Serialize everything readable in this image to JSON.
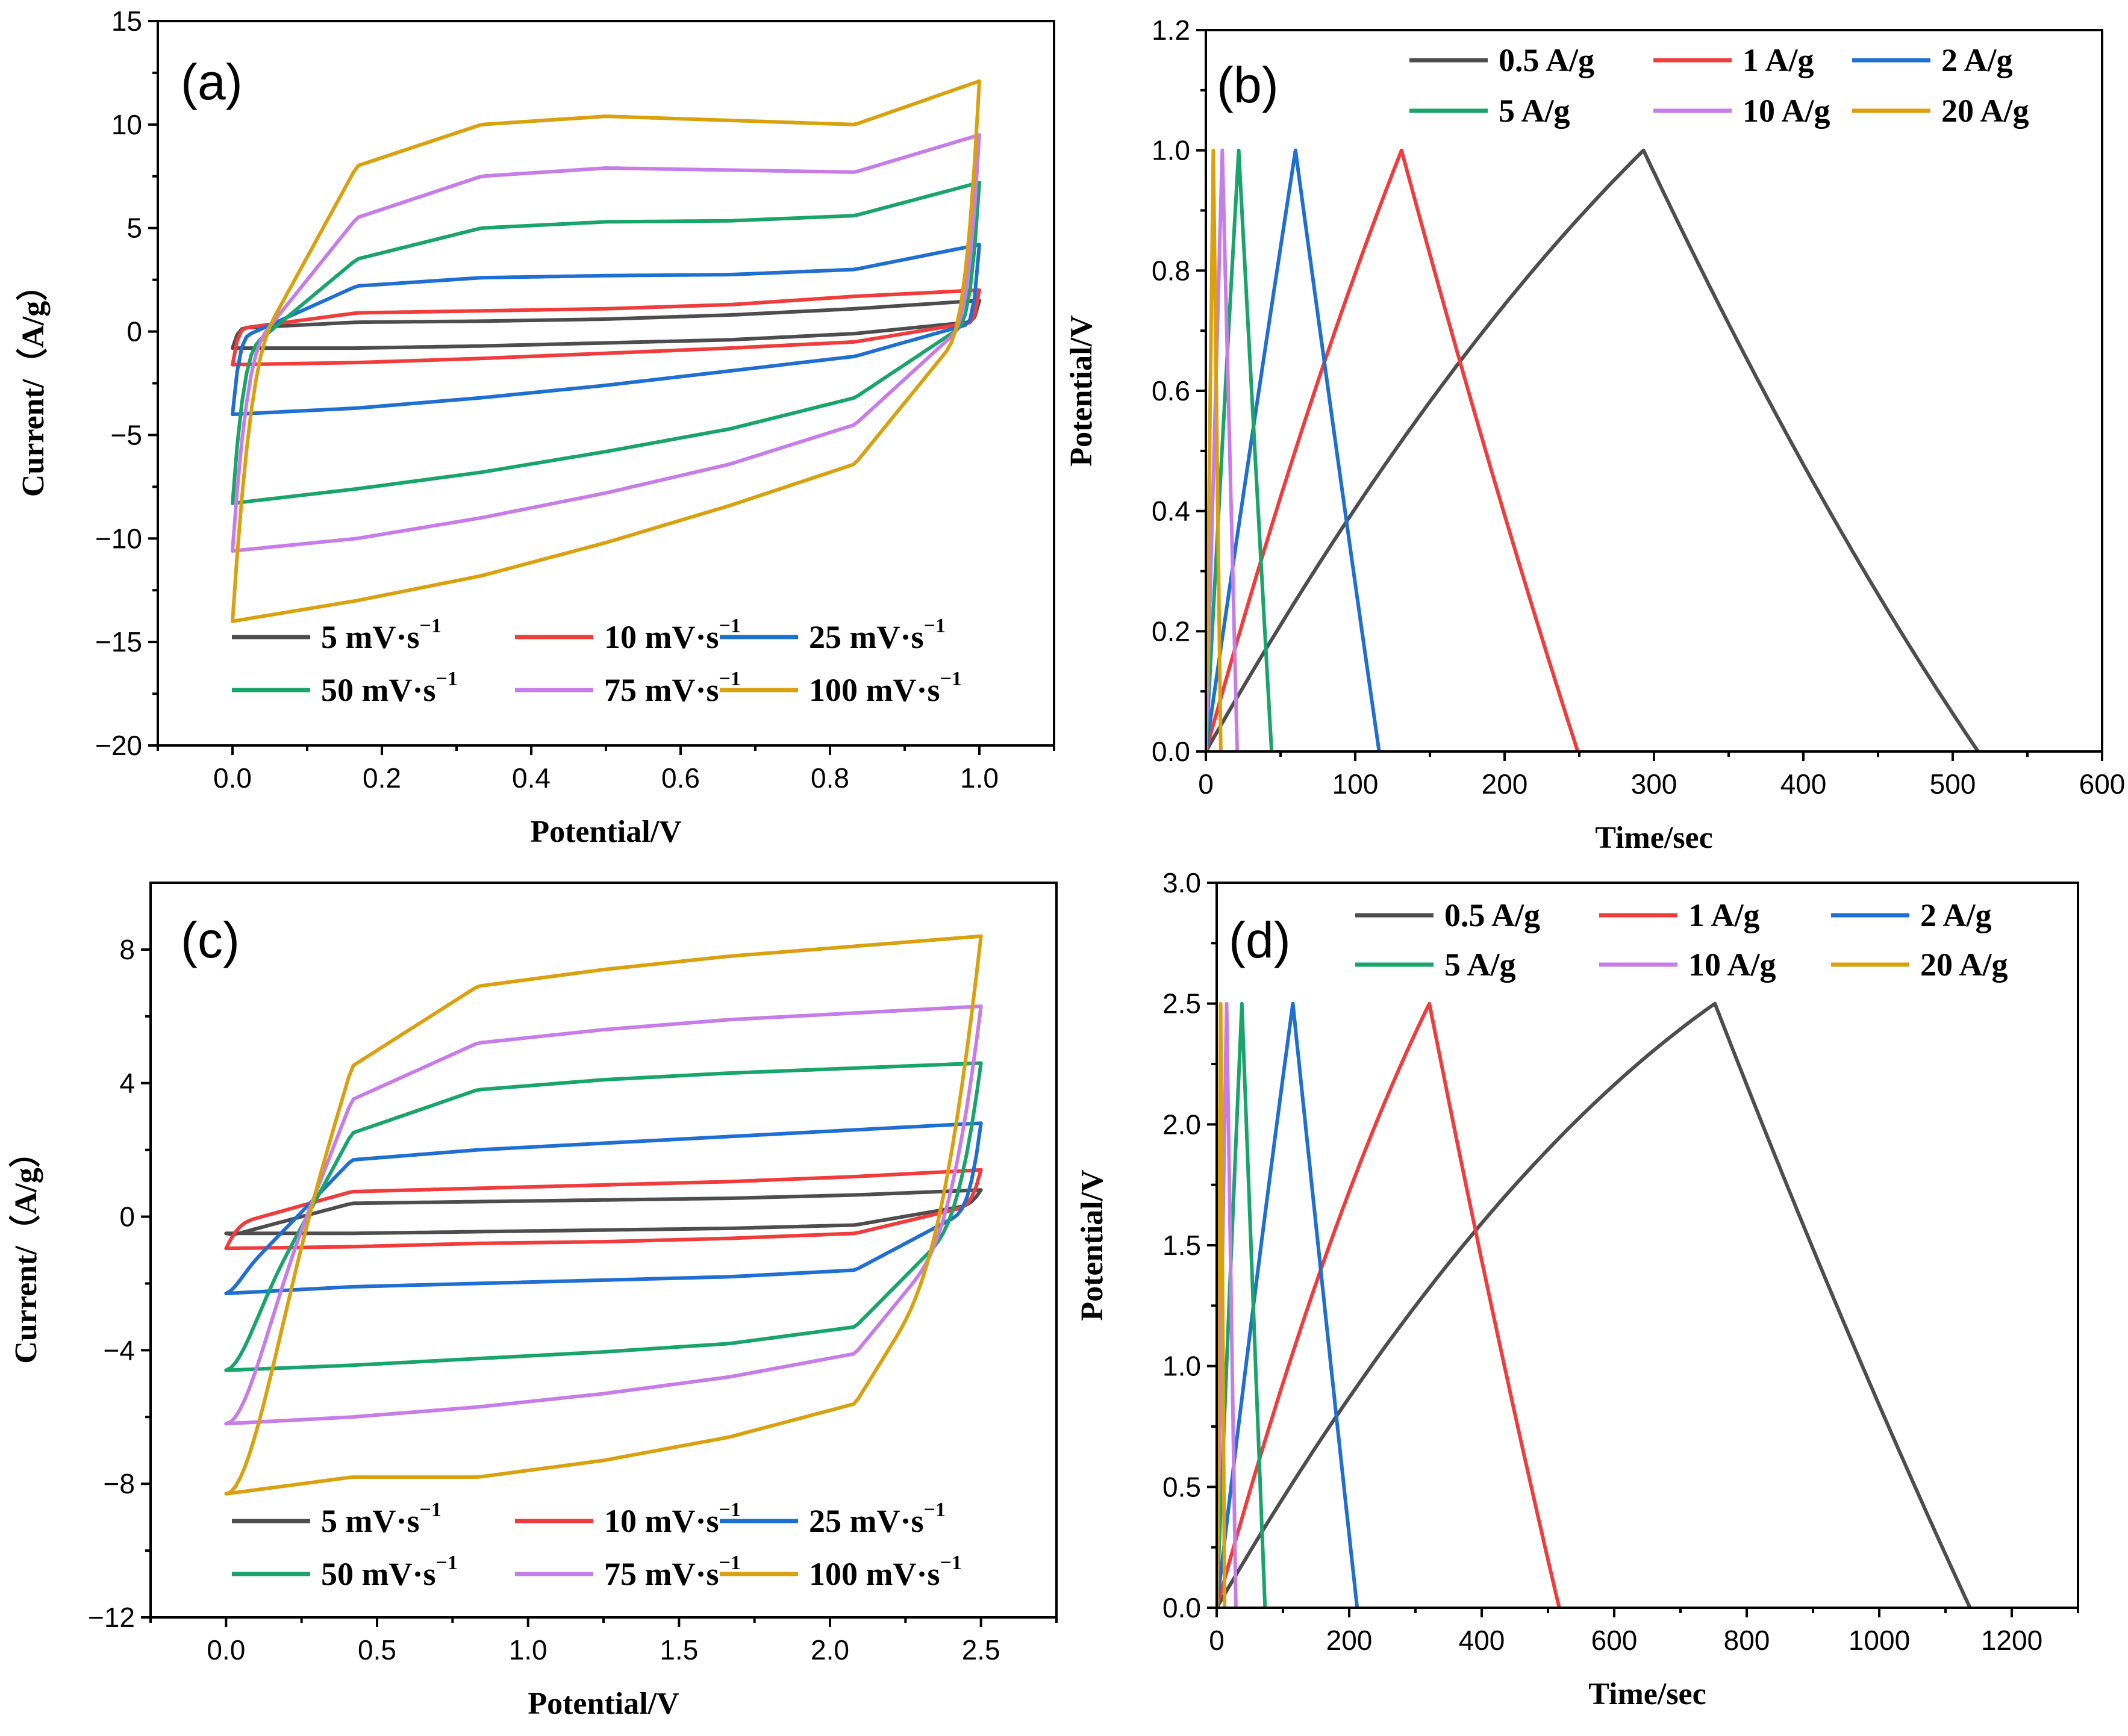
{
  "colors": {
    "series_1": "#4d4d4d",
    "series_2": "#f03c3c",
    "series_3": "#1f6fd1",
    "series_4": "#18a46a",
    "series_5": "#c77de8",
    "series_6": "#d9a10e"
  },
  "chart_data": [
    {
      "type": "line",
      "id": "a",
      "panel_label": "(a)",
      "xlabel": "Potential/V",
      "ylabel": "Current/（A/g）",
      "xlim": [
        -0.1,
        1.1
      ],
      "ylim": [
        -20,
        15
      ],
      "xticks": [
        0.0,
        0.2,
        0.4,
        0.6,
        0.8,
        1.0
      ],
      "xtick_labels": [
        "0.0",
        "0.2",
        "0.4",
        "0.6",
        "0.8",
        "1.0"
      ],
      "yticks": [
        -20,
        -15,
        -10,
        -5,
        0,
        5,
        10,
        15
      ],
      "ytick_labels": [
        "−20",
        "−15",
        "−10",
        "−5",
        "0",
        "5",
        "10",
        "15"
      ],
      "legend_position": "bottom",
      "series": [
        {
          "name": "5 mV·s",
          "sup": "−1",
          "color": "#4d4d4d",
          "cv": {
            "vmin": 0.0,
            "vmax": 1.0,
            "ia": [
              0.15,
              0.45,
              0.5,
              0.6,
              0.8,
              1.1,
              1.5
            ],
            "ic": [
              -0.8,
              -0.8,
              -0.7,
              -0.55,
              -0.4,
              -0.1,
              0.5
            ],
            "k": 0.02
          }
        },
        {
          "name": "10 mV·s",
          "sup": "−1",
          "color": "#f03c3c",
          "cv": {
            "vmin": 0.0,
            "vmax": 1.0,
            "ia": [
              0.1,
              0.9,
              1.0,
              1.1,
              1.3,
              1.7,
              2.0
            ],
            "ic": [
              -1.6,
              -1.5,
              -1.3,
              -1.05,
              -0.8,
              -0.5,
              0.5
            ],
            "k": 0.02
          }
        },
        {
          "name": "25 mV·s",
          "sup": "−1",
          "color": "#1f6fd1",
          "cv": {
            "vmin": 0.0,
            "vmax": 1.0,
            "ia": [
              -0.5,
              2.2,
              2.6,
              2.7,
              2.75,
              3.0,
              4.2
            ],
            "ic": [
              -4.0,
              -3.7,
              -3.2,
              -2.6,
              -1.9,
              -1.2,
              0.5
            ],
            "k": 0.025
          }
        },
        {
          "name": "50 mV·s",
          "sup": "−1",
          "color": "#18a46a",
          "cv": {
            "vmin": 0.0,
            "vmax": 1.0,
            "ia": [
              -1.5,
              3.5,
              5.0,
              5.3,
              5.35,
              5.6,
              7.2
            ],
            "ic": [
              -8.3,
              -7.6,
              -6.8,
              -5.8,
              -4.7,
              -3.2,
              0.8
            ],
            "k": 0.04
          }
        },
        {
          "name": "75 mV·s",
          "sup": "−1",
          "color": "#c77de8",
          "cv": {
            "vmin": 0.0,
            "vmax": 1.0,
            "ia": [
              -2.0,
              5.5,
              7.5,
              7.9,
              7.8,
              7.7,
              9.5
            ],
            "ic": [
              -10.6,
              -10.0,
              -9.0,
              -7.8,
              -6.4,
              -4.5,
              1.0
            ],
            "k": 0.05
          }
        },
        {
          "name": "100 mV·s",
          "sup": "−1",
          "color": "#d9a10e",
          "cv": {
            "vmin": 0.0,
            "vmax": 1.0,
            "ia": [
              -3.0,
              8.0,
              10.0,
              10.4,
              10.2,
              10.0,
              12.1
            ],
            "ic": [
              -14.0,
              -13.0,
              -11.8,
              -10.2,
              -8.4,
              -6.4,
              1.0
            ],
            "k": 0.06
          }
        }
      ]
    },
    {
      "type": "line",
      "id": "b",
      "panel_label": "(b)",
      "xlabel": "Time/sec",
      "ylabel": "Potential/V",
      "xlim": [
        0,
        600
      ],
      "ylim": [
        0.0,
        1.2
      ],
      "xticks": [
        0,
        100,
        200,
        300,
        400,
        500,
        600
      ],
      "xtick_labels": [
        "0",
        "100",
        "200",
        "300",
        "400",
        "500",
        "600"
      ],
      "yticks": [
        0.0,
        0.2,
        0.4,
        0.6,
        0.8,
        1.0,
        1.2
      ],
      "ytick_labels": [
        "0.0",
        "0.2",
        "0.4",
        "0.6",
        "0.8",
        "1.0",
        "1.2"
      ],
      "legend_position": "top",
      "series": [
        {
          "name": "0.5 A/g",
          "color": "#4d4d4d",
          "gcd": {
            "t_peak": 293,
            "t_end": 517,
            "v_max": 1.0,
            "c_shape": 0.8,
            "d_shape": 0.6
          }
        },
        {
          "name": "1 A/g",
          "color": "#f03c3c",
          "gcd": {
            "t_peak": 131,
            "t_end": 249,
            "v_max": 1.0,
            "c_shape": 0.5,
            "d_shape": 0.3
          }
        },
        {
          "name": "2 A/g",
          "color": "#1f6fd1",
          "gcd": {
            "t_peak": 60,
            "t_end": 116,
            "v_max": 1.0,
            "c_shape": 0.1,
            "d_shape": 0.1
          }
        },
        {
          "name": "5 A/g",
          "color": "#18a46a",
          "gcd": {
            "t_peak": 22,
            "t_end": 44,
            "v_max": 1.0,
            "c_shape": 0.1,
            "d_shape": 0.1
          }
        },
        {
          "name": "10 A/g",
          "color": "#c77de8",
          "gcd": {
            "t_peak": 11,
            "t_end": 21,
            "v_max": 1.0,
            "c_shape": 0.0,
            "d_shape": 0.0
          }
        },
        {
          "name": "20 A/g",
          "color": "#d9a10e",
          "gcd": {
            "t_peak": 5,
            "t_end": 10,
            "v_max": 1.0,
            "c_shape": 0.0,
            "d_shape": 0.0
          }
        }
      ]
    },
    {
      "type": "line",
      "id": "c",
      "panel_label": "(c)",
      "xlabel": "Potential/V",
      "ylabel": "Current/（A/g）",
      "xlim": [
        -0.25,
        2.75
      ],
      "ylim": [
        -12,
        10
      ],
      "xticks": [
        0.0,
        0.5,
        1.0,
        1.5,
        2.0,
        2.5
      ],
      "xtick_labels": [
        "0.0",
        "0.5",
        "1.0",
        "1.5",
        "2.0",
        "2.5"
      ],
      "yticks": [
        -12,
        -8,
        -4,
        0,
        4,
        8
      ],
      "ytick_labels": [
        "−12",
        "−8",
        "−4",
        "0",
        "4",
        "8"
      ],
      "legend_position": "bottom",
      "series": [
        {
          "name": "5 mV·s",
          "sup": "−1",
          "color": "#4d4d4d",
          "cv": {
            "vmin": 0.0,
            "vmax": 2.5,
            "ia": [
              -0.6,
              0.4,
              0.45,
              0.5,
              0.55,
              0.65,
              0.8
            ],
            "ic": [
              -0.5,
              -0.5,
              -0.45,
              -0.4,
              -0.35,
              -0.25,
              0.4
            ],
            "k": 0.04
          }
        },
        {
          "name": "10 mV·s",
          "sup": "−1",
          "color": "#f03c3c",
          "cv": {
            "vmin": 0.0,
            "vmax": 2.5,
            "ia": [
              -0.3,
              0.75,
              0.85,
              0.95,
              1.05,
              1.2,
              1.4
            ],
            "ic": [
              -0.95,
              -0.9,
              -0.8,
              -0.75,
              -0.65,
              -0.5,
              0.4
            ],
            "k": 0.04
          }
        },
        {
          "name": "25 mV·s",
          "sup": "−1",
          "color": "#1f6fd1",
          "cv": {
            "vmin": 0.0,
            "vmax": 2.5,
            "ia": [
              -2.2,
              1.7,
              2.0,
              2.2,
              2.4,
              2.6,
              2.8
            ],
            "ic": [
              -2.3,
              -2.1,
              -2.0,
              -1.9,
              -1.8,
              -1.6,
              0.4
            ],
            "k": 0.05
          }
        },
        {
          "name": "50 mV·s",
          "sup": "−1",
          "color": "#18a46a",
          "cv": {
            "vmin": 0.0,
            "vmax": 2.5,
            "ia": [
              -4.5,
              2.5,
              3.8,
              4.1,
              4.3,
              4.45,
              4.6
            ],
            "ic": [
              -4.6,
              -4.45,
              -4.25,
              -4.05,
              -3.8,
              -3.3,
              0.5
            ],
            "k": 0.09
          }
        },
        {
          "name": "75 mV·s",
          "sup": "−1",
          "color": "#c77de8",
          "cv": {
            "vmin": 0.0,
            "vmax": 2.5,
            "ia": [
              -6.2,
              3.5,
              5.2,
              5.6,
              5.9,
              6.1,
              6.3
            ],
            "ic": [
              -6.2,
              -6.0,
              -5.7,
              -5.3,
              -4.8,
              -4.1,
              0.5
            ],
            "k": 0.12
          }
        },
        {
          "name": "100 mV·s",
          "sup": "−1",
          "color": "#d9a10e",
          "cv": {
            "vmin": 0.0,
            "vmax": 2.5,
            "ia": [
              -8.3,
              4.5,
              6.9,
              7.4,
              7.8,
              8.1,
              8.4
            ],
            "ic": [
              -8.3,
              -7.8,
              -7.8,
              -7.3,
              -6.6,
              -5.6,
              0.5
            ],
            "k": 0.15
          }
        }
      ]
    },
    {
      "type": "line",
      "id": "d",
      "panel_label": "(d)",
      "xlabel": "Time/sec",
      "ylabel": "Potential/V",
      "xlim": [
        0,
        1300
      ],
      "ylim": [
        0.0,
        3.0
      ],
      "xticks": [
        0,
        200,
        400,
        600,
        800,
        1000,
        1200
      ],
      "xtick_labels": [
        "0",
        "200",
        "400",
        "600",
        "800",
        "1000",
        "1200"
      ],
      "yticks": [
        0.0,
        0.5,
        1.0,
        1.5,
        2.0,
        2.5,
        3.0
      ],
      "ytick_labels": [
        "0.0",
        "0.5",
        "1.0",
        "1.5",
        "2.0",
        "2.5",
        "3.0"
      ],
      "legend_position": "top",
      "series": [
        {
          "name": "0.5 A/g",
          "color": "#4d4d4d",
          "gcd": {
            "t_peak": 752,
            "t_end": 1137,
            "v_max": 2.5,
            "c_shape": 1.2,
            "d_shape": 0.3
          }
        },
        {
          "name": "1 A/g",
          "color": "#f03c3c",
          "gcd": {
            "t_peak": 321,
            "t_end": 517,
            "v_max": 2.5,
            "c_shape": 0.8,
            "d_shape": 0.3
          }
        },
        {
          "name": "2 A/g",
          "color": "#1f6fd1",
          "gcd": {
            "t_peak": 115,
            "t_end": 212,
            "v_max": 2.5,
            "c_shape": 0.2,
            "d_shape": 0.1
          }
        },
        {
          "name": "5 A/g",
          "color": "#18a46a",
          "gcd": {
            "t_peak": 38,
            "t_end": 73,
            "v_max": 2.5,
            "c_shape": 0.1,
            "d_shape": 0.1
          }
        },
        {
          "name": "10 A/g",
          "color": "#c77de8",
          "gcd": {
            "t_peak": 15,
            "t_end": 29,
            "v_max": 2.5,
            "c_shape": 0.0,
            "d_shape": 0.0
          }
        },
        {
          "name": "20 A/g",
          "color": "#d9a10e",
          "gcd": {
            "t_peak": 6,
            "t_end": 12,
            "v_max": 2.5,
            "c_shape": 0.0,
            "d_shape": 0.0
          }
        }
      ]
    }
  ]
}
